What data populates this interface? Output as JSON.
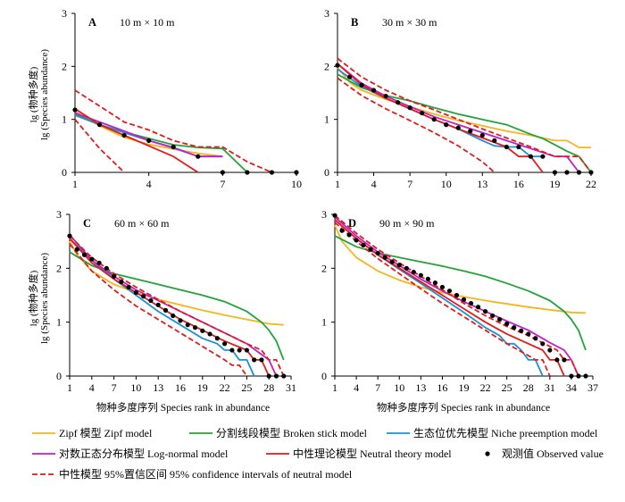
{
  "ylabel_line1": "lg (物种多度)",
  "ylabel_line2": "lg (Species abundance)",
  "xlabel": "物种多度序列  Species rank in abundance",
  "legend": [
    {
      "key": "zipf",
      "label": "Zipf 模型  Zipf model",
      "color": "#f5b51b",
      "dash": false,
      "marker": false
    },
    {
      "key": "broken",
      "label": "分割线段模型  Broken stick model",
      "color": "#22a33a",
      "dash": false,
      "marker": false
    },
    {
      "key": "niche",
      "label": "生态位优先模型  Niche preemption model",
      "color": "#1c90d8",
      "dash": false,
      "marker": false
    },
    {
      "key": "lognormal",
      "label": "对数正态分布模型  Log-normal model",
      "color": "#c21fc7",
      "dash": false,
      "marker": false
    },
    {
      "key": "neutral",
      "label": "中性理论模型  Neutral theory model",
      "color": "#e31b1b",
      "dash": false,
      "marker": false
    },
    {
      "key": "observed",
      "label": "观测值  Observed value",
      "color": "#000000",
      "dash": false,
      "marker": true
    },
    {
      "key": "ci",
      "label": "中性模型 95%置信区间  95% confidence intervals of neutral model",
      "color": "#e31b1b",
      "dash": true,
      "marker": false
    }
  ],
  "chart_data": [
    {
      "type": "line",
      "panel": "A",
      "title": "10 m × 10 m",
      "xlim": [
        1,
        10
      ],
      "ylim": [
        0,
        3
      ],
      "xticks": [
        1,
        4,
        7,
        10
      ],
      "yticks": [
        0,
        1,
        2,
        3
      ],
      "series": [
        {
          "key": "zipf",
          "x": [
            1,
            2,
            3,
            4,
            5,
            6,
            7
          ],
          "y": [
            1.15,
            0.88,
            0.66,
            0.53,
            0.44,
            0.36,
            0.3
          ]
        },
        {
          "key": "broken",
          "x": [
            1,
            2,
            3,
            4,
            5,
            6,
            7,
            8
          ],
          "y": [
            1.08,
            0.9,
            0.76,
            0.64,
            0.52,
            0.47,
            0.45,
            0
          ]
        },
        {
          "key": "niche",
          "x": [
            1,
            2,
            3,
            4,
            5,
            6,
            7
          ],
          "y": [
            1.1,
            0.9,
            0.75,
            0.6,
            0.46,
            0.3,
            0.3
          ]
        },
        {
          "key": "lognormal",
          "x": [
            1,
            2,
            3,
            4,
            5,
            6,
            7
          ],
          "y": [
            1.12,
            0.95,
            0.78,
            0.6,
            0.47,
            0.3,
            0.3
          ]
        },
        {
          "key": "neutral",
          "x": [
            1,
            2,
            3,
            4,
            5,
            6
          ],
          "y": [
            1.2,
            0.9,
            0.7,
            0.5,
            0.3,
            0
          ]
        },
        {
          "key": "ci_upper",
          "x": [
            1,
            2,
            3,
            4,
            5,
            6,
            7,
            8,
            9
          ],
          "y": [
            1.55,
            1.25,
            0.95,
            0.8,
            0.6,
            0.48,
            0.48,
            0.2,
            0
          ]
        },
        {
          "key": "ci_lower",
          "x": [
            1,
            2,
            3
          ],
          "y": [
            1.0,
            0.45,
            0
          ]
        },
        {
          "key": "observed",
          "x": [
            1,
            2,
            3,
            4,
            5,
            6,
            7,
            8,
            9,
            10
          ],
          "y": [
            1.18,
            0.9,
            0.7,
            0.6,
            0.48,
            0.3,
            0,
            0,
            0,
            0
          ]
        }
      ]
    },
    {
      "type": "line",
      "panel": "B",
      "title": "30 m × 30 m",
      "xlim": [
        1,
        22
      ],
      "ylim": [
        0,
        3
      ],
      "xticks": [
        1,
        4,
        7,
        10,
        13,
        16,
        19,
        22
      ],
      "yticks": [
        0,
        1,
        2,
        3
      ],
      "series": [
        {
          "key": "zipf",
          "x": [
            1,
            2,
            3,
            5,
            7,
            9,
            11,
            13,
            15,
            17,
            19,
            20,
            21,
            22
          ],
          "y": [
            1.98,
            1.7,
            1.55,
            1.38,
            1.24,
            1.1,
            0.98,
            0.88,
            0.78,
            0.7,
            0.6,
            0.6,
            0.47,
            0.47
          ]
        },
        {
          "key": "broken",
          "x": [
            1,
            3,
            5,
            7,
            9,
            11,
            13,
            15,
            17,
            18,
            19,
            20,
            21,
            22
          ],
          "y": [
            1.85,
            1.6,
            1.45,
            1.35,
            1.22,
            1.1,
            1.0,
            0.9,
            0.72,
            0.64,
            0.52,
            0.4,
            0.3,
            0
          ]
        },
        {
          "key": "niche",
          "x": [
            1,
            3,
            5,
            7,
            9,
            11,
            13,
            14,
            15,
            16,
            17,
            18
          ],
          "y": [
            1.95,
            1.62,
            1.4,
            1.2,
            1.0,
            0.82,
            0.6,
            0.5,
            0.48,
            0.48,
            0.3,
            0.3
          ]
        },
        {
          "key": "lognormal",
          "x": [
            1,
            3,
            5,
            7,
            9,
            11,
            13,
            15,
            17,
            19,
            20,
            21
          ],
          "y": [
            2.05,
            1.68,
            1.44,
            1.24,
            1.05,
            0.9,
            0.75,
            0.6,
            0.45,
            0.3,
            0.3,
            0
          ]
        },
        {
          "key": "neutral",
          "x": [
            1,
            3,
            5,
            7,
            9,
            11,
            13,
            15,
            16,
            17,
            18
          ],
          "y": [
            2.05,
            1.65,
            1.4,
            1.2,
            1.0,
            0.82,
            0.65,
            0.48,
            0.3,
            0.3,
            0
          ]
        },
        {
          "key": "ci_upper",
          "x": [
            1,
            3,
            5,
            7,
            9,
            11,
            13,
            15,
            17,
            19,
            21,
            22
          ],
          "y": [
            2.15,
            1.8,
            1.55,
            1.35,
            1.18,
            1.0,
            0.82,
            0.65,
            0.48,
            0.3,
            0.3,
            0
          ]
        },
        {
          "key": "ci_lower",
          "x": [
            1,
            3,
            5,
            7,
            9,
            11,
            13,
            14
          ],
          "y": [
            1.78,
            1.45,
            1.2,
            0.98,
            0.75,
            0.5,
            0.2,
            0
          ]
        },
        {
          "key": "observed",
          "x": [
            1,
            2,
            3,
            4,
            5,
            6,
            7,
            8,
            9,
            10,
            11,
            12,
            13,
            14,
            15,
            16,
            17,
            18,
            19,
            20,
            21,
            22
          ],
          "y": [
            2.02,
            1.8,
            1.65,
            1.55,
            1.44,
            1.32,
            1.22,
            1.12,
            1.0,
            0.9,
            0.84,
            0.78,
            0.7,
            0.6,
            0.48,
            0.48,
            0.3,
            0.3,
            0,
            0,
            0,
            0
          ]
        }
      ]
    },
    {
      "type": "line",
      "panel": "C",
      "title": "60 m × 60 m",
      "xlim": [
        1,
        31
      ],
      "ylim": [
        0,
        3
      ],
      "xticks": [
        1,
        4,
        7,
        10,
        13,
        16,
        19,
        22,
        25,
        28,
        31
      ],
      "yticks": [
        0,
        1,
        2,
        3
      ],
      "series": [
        {
          "key": "zipf",
          "x": [
            1,
            2,
            4,
            7,
            10,
            13,
            16,
            19,
            22,
            25,
            28,
            30
          ],
          "y": [
            2.5,
            2.25,
            1.95,
            1.7,
            1.55,
            1.42,
            1.32,
            1.22,
            1.13,
            1.05,
            0.97,
            0.95
          ]
        },
        {
          "key": "broken",
          "x": [
            1,
            4,
            7,
            10,
            13,
            16,
            19,
            22,
            25,
            27,
            28,
            29,
            30
          ],
          "y": [
            2.3,
            2.05,
            1.9,
            1.8,
            1.7,
            1.6,
            1.5,
            1.38,
            1.2,
            1.0,
            0.85,
            0.65,
            0.3
          ]
        },
        {
          "key": "niche",
          "x": [
            1,
            4,
            7,
            10,
            13,
            16,
            19,
            21,
            22,
            23,
            24,
            25,
            26
          ],
          "y": [
            2.55,
            2.15,
            1.8,
            1.5,
            1.2,
            0.95,
            0.7,
            0.6,
            0.48,
            0.48,
            0.3,
            0.3,
            0
          ]
        },
        {
          "key": "lognormal",
          "x": [
            1,
            4,
            7,
            10,
            13,
            16,
            19,
            22,
            25,
            27,
            28,
            29
          ],
          "y": [
            2.62,
            2.15,
            1.85,
            1.6,
            1.4,
            1.2,
            1.0,
            0.8,
            0.6,
            0.4,
            0.3,
            0
          ]
        },
        {
          "key": "neutral",
          "x": [
            1,
            4,
            7,
            10,
            13,
            16,
            19,
            22,
            25,
            26,
            27,
            28
          ],
          "y": [
            2.55,
            2.1,
            1.8,
            1.55,
            1.3,
            1.05,
            0.85,
            0.65,
            0.48,
            0.3,
            0.3,
            0
          ]
        },
        {
          "key": "ci_upper",
          "x": [
            1,
            4,
            7,
            10,
            13,
            16,
            19,
            22,
            25,
            27,
            28,
            29,
            30
          ],
          "y": [
            2.6,
            2.2,
            1.9,
            1.65,
            1.42,
            1.2,
            1.0,
            0.8,
            0.6,
            0.48,
            0.3,
            0.3,
            0
          ]
        },
        {
          "key": "ci_lower",
          "x": [
            1,
            4,
            7,
            10,
            13,
            16,
            19,
            22,
            23,
            24,
            25
          ],
          "y": [
            2.45,
            1.95,
            1.6,
            1.3,
            1.05,
            0.8,
            0.55,
            0.3,
            0.2,
            0.2,
            0
          ]
        },
        {
          "key": "observed",
          "x": [
            1,
            2,
            3,
            4,
            5,
            6,
            7,
            8,
            9,
            10,
            11,
            12,
            13,
            14,
            15,
            16,
            17,
            18,
            19,
            20,
            21,
            22,
            23,
            24,
            25,
            26,
            27,
            28,
            29,
            30
          ],
          "y": [
            2.6,
            2.35,
            2.25,
            2.17,
            2.1,
            2.0,
            1.85,
            1.75,
            1.65,
            1.55,
            1.48,
            1.4,
            1.32,
            1.22,
            1.12,
            1.03,
            0.95,
            0.9,
            0.84,
            0.78,
            0.7,
            0.6,
            0.48,
            0.48,
            0.48,
            0.3,
            0.3,
            0,
            0,
            0
          ]
        }
      ]
    },
    {
      "type": "line",
      "panel": "D",
      "title": "90 m × 90 m",
      "xlim": [
        1,
        37
      ],
      "ylim": [
        0,
        3
      ],
      "xticks": [
        1,
        4,
        7,
        10,
        13,
        16,
        19,
        22,
        25,
        28,
        31,
        34,
        37
      ],
      "yticks": [
        0,
        1,
        2,
        3
      ],
      "series": [
        {
          "key": "zipf",
          "x": [
            1,
            2,
            4,
            7,
            10,
            13,
            16,
            19,
            22,
            25,
            28,
            31,
            34,
            36
          ],
          "y": [
            2.8,
            2.5,
            2.2,
            1.95,
            1.78,
            1.65,
            1.55,
            1.47,
            1.4,
            1.34,
            1.28,
            1.23,
            1.18,
            1.17
          ]
        },
        {
          "key": "broken",
          "x": [
            1,
            4,
            7,
            10,
            13,
            16,
            19,
            22,
            25,
            28,
            31,
            33,
            34,
            35,
            36
          ],
          "y": [
            2.6,
            2.4,
            2.28,
            2.2,
            2.12,
            2.04,
            1.95,
            1.85,
            1.72,
            1.58,
            1.4,
            1.2,
            1.05,
            0.85,
            0.48
          ]
        },
        {
          "key": "niche",
          "x": [
            1,
            4,
            7,
            10,
            13,
            16,
            19,
            22,
            24,
            25,
            26,
            27,
            28,
            29,
            30
          ],
          "y": [
            2.9,
            2.55,
            2.25,
            1.98,
            1.72,
            1.45,
            1.18,
            0.9,
            0.75,
            0.6,
            0.6,
            0.48,
            0.3,
            0.3,
            0
          ]
        },
        {
          "key": "lognormal",
          "x": [
            1,
            4,
            7,
            10,
            13,
            16,
            19,
            22,
            25,
            28,
            31,
            33,
            34,
            35
          ],
          "y": [
            2.95,
            2.6,
            2.3,
            2.05,
            1.8,
            1.58,
            1.38,
            1.2,
            1.02,
            0.85,
            0.62,
            0.48,
            0.3,
            0
          ]
        },
        {
          "key": "neutral",
          "x": [
            1,
            4,
            7,
            10,
            13,
            16,
            19,
            22,
            25,
            28,
            30,
            31,
            32,
            33
          ],
          "y": [
            2.9,
            2.55,
            2.25,
            2.0,
            1.75,
            1.5,
            1.25,
            1.0,
            0.78,
            0.6,
            0.48,
            0.3,
            0.3,
            0
          ]
        },
        {
          "key": "ci_upper",
          "x": [
            1,
            4,
            7,
            10,
            13,
            16,
            19,
            22,
            25,
            28,
            31,
            32,
            33,
            34,
            35
          ],
          "y": [
            2.98,
            2.65,
            2.35,
            2.1,
            1.85,
            1.6,
            1.35,
            1.12,
            0.92,
            0.75,
            0.55,
            0.48,
            0.3,
            0.3,
            0
          ]
        },
        {
          "key": "ci_lower",
          "x": [
            1,
            4,
            7,
            10,
            13,
            16,
            19,
            22,
            25,
            28,
            29,
            30,
            31
          ],
          "y": [
            2.85,
            2.5,
            2.18,
            1.9,
            1.62,
            1.35,
            1.1,
            0.85,
            0.6,
            0.38,
            0.3,
            0.3,
            0
          ]
        },
        {
          "key": "observed",
          "x": [
            1,
            2,
            3,
            4,
            5,
            6,
            7,
            8,
            9,
            10,
            11,
            12,
            13,
            14,
            15,
            16,
            17,
            18,
            19,
            20,
            21,
            22,
            23,
            24,
            25,
            26,
            27,
            28,
            29,
            30,
            31,
            32,
            33,
            34,
            35,
            36
          ],
          "y": [
            2.98,
            2.7,
            2.62,
            2.52,
            2.43,
            2.35,
            2.28,
            2.2,
            2.12,
            2.06,
            2.0,
            1.93,
            1.87,
            1.8,
            1.73,
            1.65,
            1.58,
            1.5,
            1.42,
            1.35,
            1.28,
            1.2,
            1.12,
            1.05,
            0.97,
            0.9,
            0.84,
            0.78,
            0.7,
            0.6,
            0.48,
            0.3,
            0.3,
            0,
            0,
            0
          ]
        }
      ]
    }
  ]
}
